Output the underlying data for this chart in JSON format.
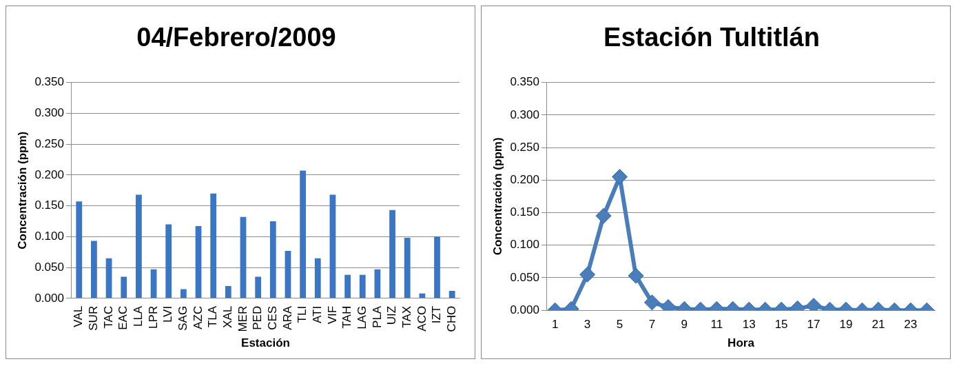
{
  "chart_data": [
    {
      "type": "bar",
      "title": "04/Febrero/2009",
      "xlabel": "Estación",
      "ylabel": "Concentración (ppm)",
      "categories": [
        "VAL",
        "SUR",
        "TAC",
        "EAC",
        "LLA",
        "LPR",
        "LVI",
        "SAG",
        "AZC",
        "TLA",
        "XAL",
        "MER",
        "PED",
        "CES",
        "ARA",
        "TLI",
        "ATI",
        "VIF",
        "TAH",
        "LAG",
        "PLA",
        "UIZ",
        "TAX",
        "ACO",
        "IZT",
        "CHO"
      ],
      "values": [
        0.157,
        0.093,
        0.065,
        0.035,
        0.168,
        0.047,
        0.12,
        0.015,
        0.117,
        0.17,
        0.02,
        0.132,
        0.035,
        0.125,
        0.077,
        0.207,
        0.065,
        0.168,
        0.038,
        0.038,
        0.047,
        0.143,
        0.098,
        0.008,
        0.1,
        0.012
      ],
      "color": "#3a76c4",
      "ylim": [
        0,
        0.35
      ],
      "yticks": [
        {
          "value": 0,
          "label": "0.000"
        },
        {
          "value": 0.05,
          "label": "0.050"
        },
        {
          "value": 0.1,
          "label": "0.100"
        },
        {
          "value": 0.15,
          "label": "0.150"
        },
        {
          "value": 0.2,
          "label": "0.200"
        },
        {
          "value": 0.25,
          "label": "0.250"
        },
        {
          "value": 0.3,
          "label": "0.300"
        },
        {
          "value": 0.35,
          "label": "0.350"
        }
      ],
      "grid": "y",
      "legend": false
    },
    {
      "type": "line",
      "title": "Estación Tultitlán",
      "xlabel": "Hora",
      "ylabel": "Concentración (ppm)",
      "x": [
        1,
        2,
        3,
        4,
        5,
        6,
        7,
        8,
        9,
        10,
        11,
        12,
        13,
        14,
        15,
        16,
        17,
        18,
        19,
        20,
        21,
        22,
        23,
        24
      ],
      "values": [
        0,
        0.002,
        0.055,
        0.145,
        0.205,
        0.053,
        0.012,
        0.005,
        0.002,
        0.001,
        0.002,
        0.002,
        0.001,
        0.001,
        0.001,
        0.003,
        0.007,
        0.001,
        0.001,
        0,
        0.001,
        0,
        0,
        0
      ],
      "color": "#4a7ebb",
      "marker": "diamond",
      "line_style": "solid",
      "xlim": [
        0.5,
        24.5
      ],
      "xticks": [
        1,
        3,
        5,
        7,
        9,
        11,
        13,
        15,
        17,
        19,
        21,
        23
      ],
      "ylim": [
        0,
        0.35
      ],
      "yticks": [
        {
          "value": 0,
          "label": "0.000"
        },
        {
          "value": 0.05,
          "label": "0.050"
        },
        {
          "value": 0.1,
          "label": "0.100"
        },
        {
          "value": 0.15,
          "label": "0.150"
        },
        {
          "value": 0.2,
          "label": "0.200"
        },
        {
          "value": 0.25,
          "label": "0.250"
        },
        {
          "value": 0.3,
          "label": "0.300"
        },
        {
          "value": 0.35,
          "label": "0.350"
        }
      ],
      "grid": "y",
      "legend": false
    }
  ]
}
